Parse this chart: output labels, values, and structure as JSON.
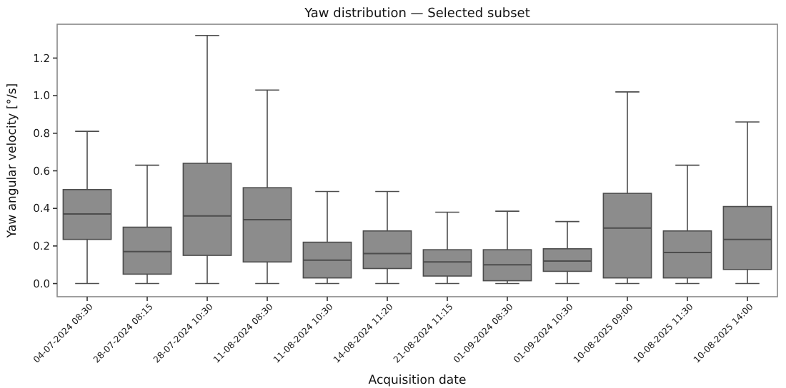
{
  "chart_data": {
    "type": "box",
    "title": "Yaw distribution — Selected subset",
    "xlabel": "Acquisition date",
    "ylabel": "Yaw angular velocity [°/s]",
    "categories": [
      "04-07-2024\n08:30",
      "28-07-2024\n08:15",
      "28-07-2024\n10:30",
      "11-08-2024\n08:30",
      "11-08-2024\n10:30",
      "14-08-2024\n11:20",
      "21-08-2024\n11:15",
      "01-09-2024\n08:30",
      "01-09-2024\n10:30",
      "10-08-2025\n09:00",
      "10-08-2025\n11:30",
      "10-08-2025\n14:00"
    ],
    "series": [
      {
        "color": "#8c8c8c",
        "boxes": [
          {
            "low": 0,
            "q1": 0.235,
            "median": 0.37,
            "q3": 0.5,
            "high": 0.81
          },
          {
            "low": 0,
            "q1": 0.05,
            "median": 0.17,
            "q3": 0.3,
            "high": 0.63
          },
          {
            "low": 0,
            "q1": 0.15,
            "median": 0.36,
            "q3": 0.64,
            "high": 1.32
          },
          {
            "low": 0,
            "q1": 0.115,
            "median": 0.34,
            "q3": 0.51,
            "high": 1.03
          },
          {
            "low": 0,
            "q1": 0.03,
            "median": 0.125,
            "q3": 0.22,
            "high": 0.49
          },
          {
            "low": 0,
            "q1": 0.08,
            "median": 0.16,
            "q3": 0.28,
            "high": 0.49
          },
          {
            "low": 0,
            "q1": 0.04,
            "median": 0.115,
            "q3": 0.18,
            "high": 0.38
          },
          {
            "low": 0,
            "q1": 0.015,
            "median": 0.1,
            "q3": 0.18,
            "high": 0.385
          },
          {
            "low": 0,
            "q1": 0.065,
            "median": 0.12,
            "q3": 0.185,
            "high": 0.33
          },
          {
            "low": 0,
            "q1": 0.03,
            "median": 0.295,
            "q3": 0.48,
            "high": 1.02
          },
          {
            "low": 0,
            "q1": 0.03,
            "median": 0.165,
            "q3": 0.28,
            "high": 0.63
          },
          {
            "low": 0,
            "q1": 0.075,
            "median": 0.235,
            "q3": 0.41,
            "high": 0.86
          }
        ]
      }
    ],
    "ylim": [
      -0.07,
      1.38
    ],
    "yticks": [
      {
        "value": 0,
        "label": "0.0"
      },
      {
        "value": 0.2,
        "label": "0.2"
      },
      {
        "value": 0.4,
        "label": "0.4"
      },
      {
        "value": 0.6,
        "label": "0.6"
      },
      {
        "value": 0.8,
        "label": "0.8"
      },
      {
        "value": 1,
        "label": "1.0"
      },
      {
        "value": 1.2,
        "label": "1.2"
      }
    ],
    "grid": false
  }
}
